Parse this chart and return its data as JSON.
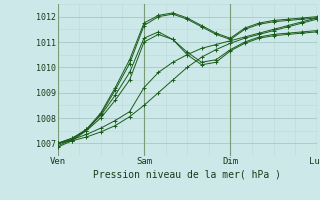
{
  "bg_color": "#cce8e8",
  "grid_color_major": "#a8c8c8",
  "grid_color_minor": "#bcd8d8",
  "line_color": "#1a5c1a",
  "ylim": [
    1006.5,
    1012.5
  ],
  "yticks": [
    1007,
    1008,
    1009,
    1010,
    1011,
    1012
  ],
  "xlim": [
    0,
    72
  ],
  "xtick_positions": [
    0,
    24,
    48,
    72
  ],
  "xlabels": [
    "Ven",
    "Sam",
    "Dim",
    "Lun"
  ],
  "xlabel": "Pression niveau de la mer( hPa )",
  "series": [
    [
      0,
      1007.0,
      4,
      1007.15,
      8,
      1007.35,
      12,
      1007.6,
      16,
      1007.9,
      20,
      1008.25,
      24,
      1009.2,
      28,
      1009.8,
      32,
      1010.2,
      36,
      1010.5,
      40,
      1010.75,
      44,
      1010.9,
      48,
      1011.05,
      52,
      1011.2,
      56,
      1011.35,
      60,
      1011.5,
      64,
      1011.65,
      68,
      1011.8,
      72,
      1011.95
    ],
    [
      0,
      1007.0,
      4,
      1007.1,
      8,
      1007.25,
      12,
      1007.45,
      16,
      1007.7,
      20,
      1008.05,
      24,
      1008.5,
      28,
      1009.0,
      32,
      1009.5,
      36,
      1010.0,
      40,
      1010.4,
      44,
      1010.7,
      48,
      1010.95,
      52,
      1011.15,
      56,
      1011.3,
      60,
      1011.45,
      64,
      1011.6,
      68,
      1011.75,
      72,
      1011.9
    ],
    [
      0,
      1007.0,
      4,
      1007.2,
      8,
      1007.5,
      12,
      1008.0,
      16,
      1008.7,
      20,
      1009.5,
      24,
      1011.0,
      28,
      1011.3,
      32,
      1011.1,
      36,
      1010.6,
      40,
      1010.2,
      44,
      1010.3,
      48,
      1010.7,
      52,
      1011.0,
      56,
      1011.2,
      60,
      1011.3,
      64,
      1011.35,
      68,
      1011.4,
      72,
      1011.45
    ],
    [
      0,
      1007.0,
      4,
      1007.2,
      8,
      1007.55,
      12,
      1008.1,
      16,
      1008.9,
      20,
      1009.8,
      24,
      1011.15,
      28,
      1011.4,
      32,
      1011.1,
      36,
      1010.5,
      40,
      1010.1,
      44,
      1010.2,
      48,
      1010.65,
      52,
      1010.95,
      56,
      1011.15,
      60,
      1011.25,
      64,
      1011.3,
      68,
      1011.35,
      72,
      1011.4
    ],
    [
      0,
      1006.85,
      4,
      1007.1,
      8,
      1007.5,
      12,
      1008.15,
      16,
      1009.1,
      20,
      1010.15,
      24,
      1011.65,
      28,
      1012.0,
      32,
      1012.1,
      36,
      1011.9,
      40,
      1011.6,
      44,
      1011.3,
      48,
      1011.1,
      52,
      1011.5,
      56,
      1011.7,
      60,
      1011.8,
      64,
      1011.85,
      68,
      1011.9,
      72,
      1011.95
    ],
    [
      0,
      1006.9,
      4,
      1007.15,
      8,
      1007.55,
      12,
      1008.2,
      16,
      1009.2,
      20,
      1010.3,
      24,
      1011.75,
      28,
      1012.05,
      32,
      1012.15,
      36,
      1011.95,
      40,
      1011.65,
      44,
      1011.35,
      48,
      1011.15,
      52,
      1011.55,
      56,
      1011.75,
      60,
      1011.85,
      64,
      1011.9,
      68,
      1011.95,
      72,
      1012.0
    ]
  ],
  "marker": "+"
}
